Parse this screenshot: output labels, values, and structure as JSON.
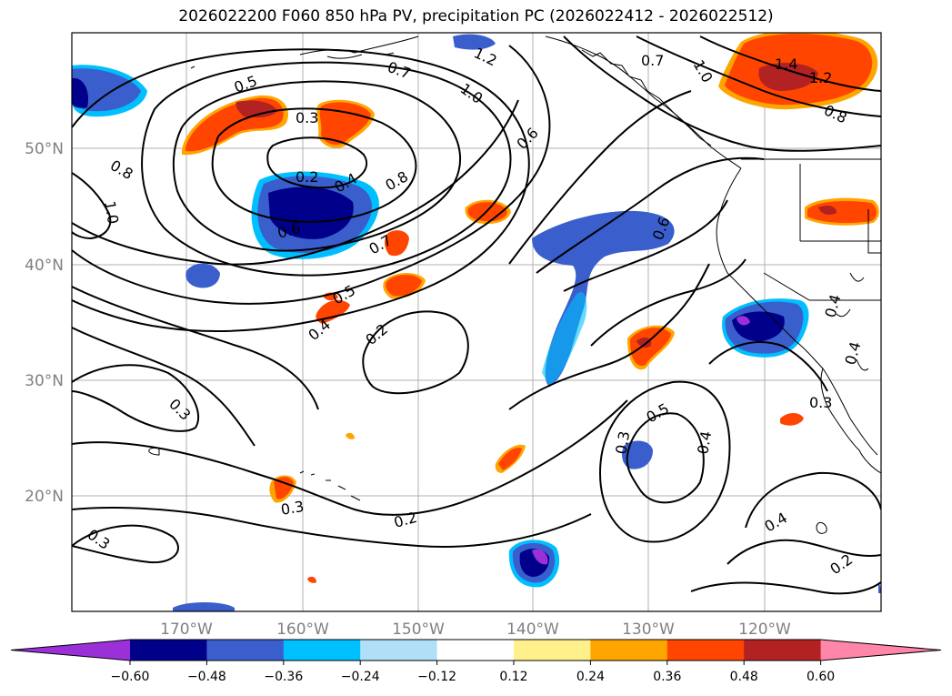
{
  "title": "2026022200 F060 850 hPa PV, precipitation PC (2026022412 - 2026022512)",
  "lat_labels": [
    "50°N",
    "40°N",
    "30°N",
    "20°N"
  ],
  "lon_labels": [
    "170°W",
    "160°W",
    "150°W",
    "140°W",
    "130°W",
    "120°W"
  ],
  "colorbar": {
    "ticks": [
      "−0.60",
      "−0.48",
      "−0.36",
      "−0.24",
      "−0.12",
      "0.12",
      "0.24",
      "0.36",
      "0.48",
      "0.60"
    ],
    "colors": [
      "#9b30d9",
      "#00008b",
      "#3a5fcd",
      "#00bfff",
      "#b0e0f8",
      "#ffffff",
      "#fff08c",
      "#ffa500",
      "#ff4500",
      "#b22222",
      "#ff86a8"
    ]
  },
  "contour_labels": [
    "1.2",
    "0.7",
    "1.0",
    "0.7",
    "1.0",
    "1.4",
    "1.2",
    "0.5",
    "0.3",
    "0.8",
    "0.6",
    "0.8",
    "1.0",
    "0.2",
    "0.4",
    "0.8",
    "0.6",
    "0.7",
    "0.6",
    "0.5",
    "0.4",
    "0.2",
    "0.4",
    "0.3",
    "0.3",
    "0.3",
    "0.5",
    "0.4",
    "0.3",
    "0.3",
    "0.2",
    "0.4",
    "0.2",
    "0.4"
  ]
}
